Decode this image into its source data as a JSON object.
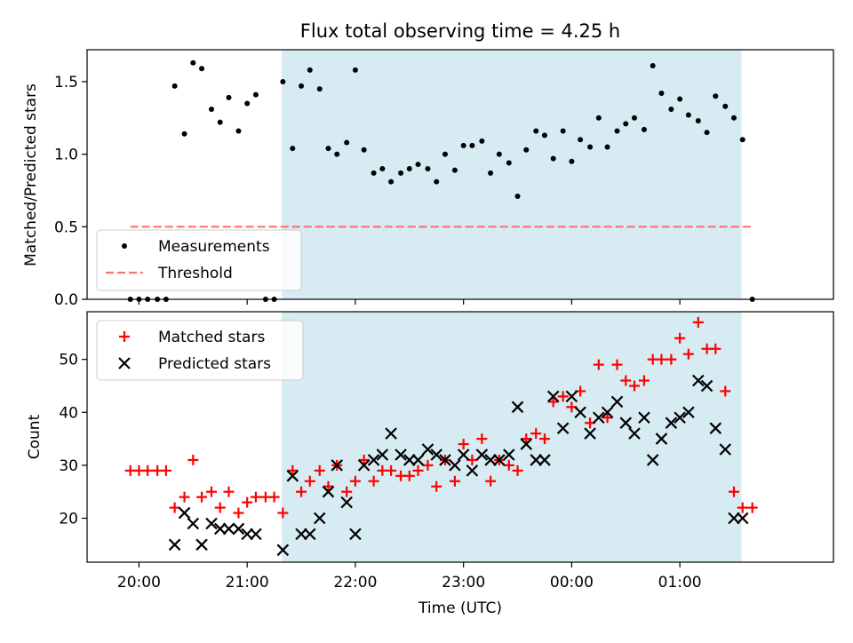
{
  "title": "Flux total observing time = 4.25 h",
  "colors": {
    "measurement": "#000000",
    "threshold": "#ff7070",
    "matched": "#ff0000",
    "predicted": "#000000",
    "shade": "#add8e6"
  },
  "chart_data": [
    {
      "type": "scatter",
      "ylabel": "Matched/Predicted stars",
      "ylim": [
        0,
        1.72
      ],
      "yticks": [
        "0.0",
        "0.5",
        "1.0",
        "1.5"
      ],
      "xlim_hours": [
        19.52,
        26.42
      ],
      "shaded_interval_hours": [
        21.32,
        25.57
      ],
      "threshold": 0.5,
      "threshold_x_hours": [
        19.92,
        25.67
      ],
      "legend": {
        "placement": "lower-left",
        "entries": [
          "Measurements",
          "Threshold"
        ]
      },
      "series": [
        {
          "name": "Measurements",
          "x_hours": [
            19.92,
            20.0,
            20.08,
            20.17,
            20.25,
            20.33,
            20.42,
            20.5,
            20.58,
            20.67,
            20.75,
            20.83,
            20.92,
            21.0,
            21.08,
            21.17,
            21.25,
            21.33,
            21.42,
            21.5,
            21.58,
            21.67,
            21.75,
            21.83,
            21.92,
            22.0,
            22.08,
            22.17,
            22.25,
            22.33,
            22.42,
            22.5,
            22.58,
            22.67,
            22.75,
            22.83,
            22.92,
            23.0,
            23.08,
            23.17,
            23.25,
            23.33,
            23.42,
            23.5,
            23.58,
            23.67,
            23.75,
            23.83,
            23.92,
            24.0,
            24.08,
            24.17,
            24.25,
            24.33,
            24.42,
            24.5,
            24.58,
            24.67,
            24.75,
            24.83,
            24.92,
            25.0,
            25.08,
            25.17,
            25.25,
            25.33,
            25.42,
            25.5,
            25.58,
            25.67
          ],
          "y": [
            0,
            0,
            0,
            0,
            0,
            1.47,
            1.14,
            1.63,
            1.59,
            1.31,
            1.22,
            1.39,
            1.16,
            1.35,
            1.41,
            0,
            0,
            1.5,
            1.04,
            1.47,
            1.58,
            1.45,
            1.04,
            1.0,
            1.08,
            1.58,
            1.03,
            0.87,
            0.9,
            0.81,
            0.87,
            0.9,
            0.93,
            0.9,
            0.81,
            1.0,
            0.89,
            1.06,
            1.06,
            1.09,
            0.87,
            1.0,
            0.94,
            0.71,
            1.03,
            1.16,
            1.13,
            0.97,
            1.16,
            0.95,
            1.1,
            1.05,
            1.25,
            1.05,
            1.16,
            1.21,
            1.25,
            1.17,
            1.61,
            1.42,
            1.31,
            1.38,
            1.27,
            1.23,
            1.15,
            1.4,
            1.33,
            1.25,
            1.1,
            0
          ]
        }
      ]
    },
    {
      "type": "scatter",
      "xlabel": "Time (UTC)",
      "ylabel": "Count",
      "ylim": [
        11.7,
        59.0
      ],
      "yticks": [
        "20",
        "30",
        "40",
        "50"
      ],
      "xlim_hours": [
        19.52,
        26.42
      ],
      "xticks": [
        "20:00",
        "21:00",
        "22:00",
        "23:00",
        "00:00",
        "01:00"
      ],
      "shaded_interval_hours": [
        21.32,
        25.57
      ],
      "legend": {
        "placement": "upper-left",
        "entries": [
          "Matched stars",
          "Predicted stars"
        ]
      },
      "series": [
        {
          "name": "Matched stars",
          "x_hours": [
            19.92,
            20.0,
            20.08,
            20.17,
            20.25,
            20.33,
            20.42,
            20.5,
            20.58,
            20.67,
            20.75,
            20.83,
            20.92,
            21.0,
            21.08,
            21.17,
            21.25,
            21.33,
            21.42,
            21.5,
            21.58,
            21.67,
            21.75,
            21.83,
            21.92,
            22.0,
            22.08,
            22.17,
            22.25,
            22.33,
            22.42,
            22.5,
            22.58,
            22.67,
            22.75,
            22.83,
            22.92,
            23.0,
            23.08,
            23.17,
            23.25,
            23.33,
            23.42,
            23.5,
            23.58,
            23.67,
            23.75,
            23.83,
            23.92,
            24.0,
            24.08,
            24.17,
            24.25,
            24.33,
            24.42,
            24.5,
            24.58,
            24.67,
            24.75,
            24.83,
            24.92,
            25.0,
            25.08,
            25.17,
            25.25,
            25.33,
            25.42,
            25.5,
            25.58,
            25.67
          ],
          "y": [
            29,
            29,
            29,
            29,
            29,
            22,
            24,
            31,
            24,
            25,
            22,
            25,
            21,
            23,
            24,
            24,
            24,
            21,
            29,
            25,
            27,
            29,
            26,
            30,
            25,
            27,
            31,
            27,
            29,
            29,
            28,
            28,
            29,
            30,
            26,
            31,
            27,
            34,
            31,
            35,
            27,
            31,
            30,
            29,
            35,
            36,
            35,
            42,
            43,
            41,
            44,
            38,
            49,
            39,
            49,
            46,
            45,
            46,
            50,
            50,
            50,
            54,
            51,
            57,
            52,
            52,
            44,
            25,
            22,
            22
          ]
        },
        {
          "name": "Predicted stars",
          "x_hours": [
            20.33,
            20.42,
            20.5,
            20.58,
            20.67,
            20.75,
            20.83,
            20.92,
            21.0,
            21.08,
            21.33,
            21.42,
            21.5,
            21.58,
            21.67,
            21.75,
            21.83,
            21.92,
            22.0,
            22.08,
            22.17,
            22.25,
            22.33,
            22.42,
            22.5,
            22.58,
            22.67,
            22.75,
            22.83,
            22.92,
            23.0,
            23.08,
            23.17,
            23.25,
            23.33,
            23.42,
            23.5,
            23.58,
            23.67,
            23.75,
            23.83,
            23.92,
            24.0,
            24.08,
            24.17,
            24.25,
            24.33,
            24.42,
            24.5,
            24.58,
            24.67,
            24.75,
            24.83,
            24.92,
            25.0,
            25.08,
            25.17,
            25.25,
            25.33,
            25.42,
            25.5,
            25.58
          ],
          "y": [
            15,
            21,
            19,
            15,
            19,
            18,
            18,
            18,
            17,
            17,
            14,
            28,
            17,
            17,
            20,
            25,
            30,
            23,
            17,
            30,
            31,
            32,
            36,
            32,
            31,
            31,
            33,
            32,
            31,
            30,
            32,
            29,
            32,
            31,
            31,
            32,
            41,
            34,
            31,
            31,
            43,
            37,
            43,
            40,
            36,
            39,
            40,
            42,
            38,
            36,
            39,
            31,
            35,
            38,
            39,
            40,
            46,
            45,
            37,
            33,
            20,
            20
          ]
        }
      ]
    }
  ]
}
